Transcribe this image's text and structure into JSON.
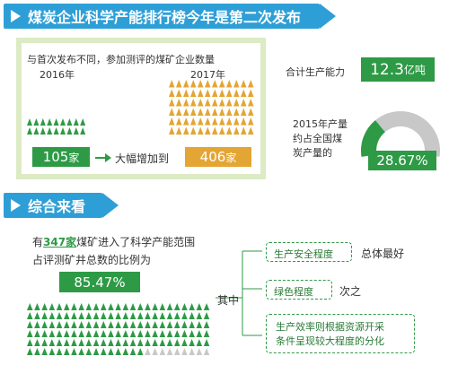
{
  "banner1": {
    "title": "煤炭企业科学产能排行榜今年是第二次发布"
  },
  "section1": {
    "intro": "与首次发布不同，参加测评的煤矿企业数量",
    "year_2016": "2016年",
    "year_2017": "2017年",
    "count_2016": "105",
    "count_2016_unit": "家",
    "arrow_text": "大幅增加到",
    "count_2017": "406",
    "count_2017_unit": "家"
  },
  "capacity": {
    "label": "合计生产能力",
    "value": "12.3",
    "unit": "亿吨"
  },
  "share": {
    "line1": "2015年产量",
    "line2": "约占全国煤",
    "line3": "炭产量的",
    "percent_text": "28.67%",
    "percent_value": 28.67
  },
  "banner2": {
    "title": "综合来看"
  },
  "section2": {
    "pre": "有",
    "highlight": "347家",
    "post": "煤矿进入了科学产能范围",
    "line2": "占评测矿井总数的比例为",
    "percent_text": "85.47%",
    "percent_value": 85.47
  },
  "diagram": {
    "root": "其中",
    "items": [
      {
        "box": "生产安全程度",
        "note": "总体最好"
      },
      {
        "box": "绿色程度",
        "note": "次之"
      },
      {
        "box_line1": "生产效率则根据资源开采",
        "box_line2": "条件呈现较大程度的分化"
      }
    ]
  },
  "colors": {
    "green": "#2e9a46",
    "orange": "#e3a533",
    "blue": "#2e9fd6",
    "gray": "#c8c8c8",
    "panel": "#dcebc4"
  }
}
